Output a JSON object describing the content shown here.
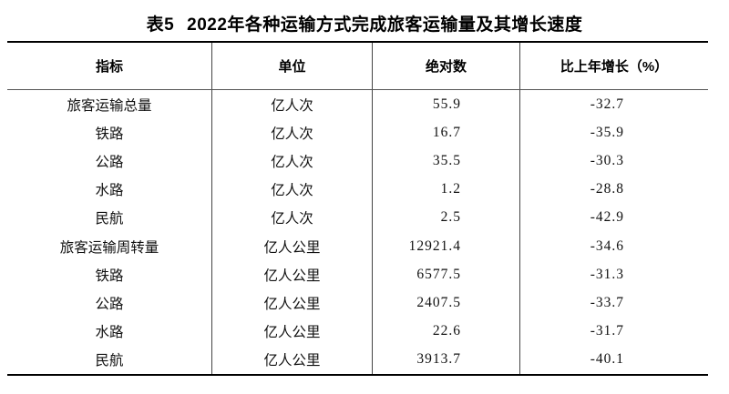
{
  "title": {
    "prefix": "表5",
    "text": "2022年各种运输方式完成旅客运输量及其增长速度"
  },
  "table": {
    "headers": [
      "指标",
      "单位",
      "绝对数",
      "比上年增长（%）"
    ],
    "rows": [
      {
        "indicator": "旅客运输总量",
        "unit": "亿人次",
        "value": "55.9",
        "growth": "-32.7"
      },
      {
        "indicator": "铁路",
        "unit": "亿人次",
        "value": "16.7",
        "growth": "-35.9"
      },
      {
        "indicator": "公路",
        "unit": "亿人次",
        "value": "35.5",
        "growth": "-30.3"
      },
      {
        "indicator": "水路",
        "unit": "亿人次",
        "value": "1.2",
        "growth": "-28.8"
      },
      {
        "indicator": "民航",
        "unit": "亿人次",
        "value": "2.5",
        "growth": "-42.9"
      },
      {
        "indicator": "旅客运输周转量",
        "unit": "亿人公里",
        "value": "12921.4",
        "growth": "-34.6"
      },
      {
        "indicator": "铁路",
        "unit": "亿人公里",
        "value": "6577.5",
        "growth": "-31.3"
      },
      {
        "indicator": "公路",
        "unit": "亿人公里",
        "value": "2407.5",
        "growth": "-33.7"
      },
      {
        "indicator": "水路",
        "unit": "亿人公里",
        "value": "22.6",
        "growth": "-31.7"
      },
      {
        "indicator": "民航",
        "unit": "亿人公里",
        "value": "3913.7",
        "growth": "-40.1"
      }
    ]
  },
  "colors": {
    "text": "#000000",
    "border_thick": "#000000",
    "border_thin": "#555555",
    "background": "#ffffff"
  }
}
